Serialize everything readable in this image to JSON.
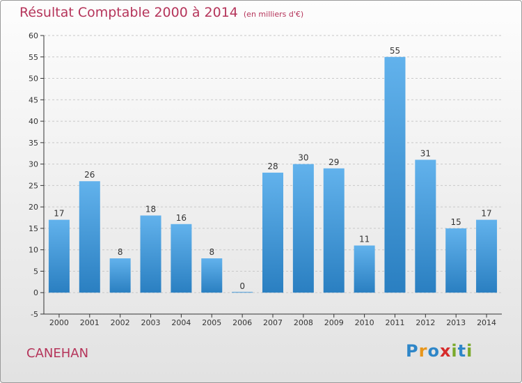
{
  "title": "Résultat Comptable 2000 à 2014",
  "subtitle": "(en milliers d'€)",
  "commune": "CANEHAN",
  "logo": {
    "letters": [
      "P",
      "r",
      "o",
      "x",
      "i",
      "t",
      "i"
    ],
    "colors": [
      "#2e86c8",
      "#e8961b",
      "#2e86c8",
      "#d62b2b",
      "#7aa92a",
      "#2e86c8",
      "#7aa92a"
    ]
  },
  "colors": {
    "title": "#b5345a",
    "bar_light": "#62b2ec",
    "bar_dark": "#2a7fc1",
    "grid": "#c8c8c8",
    "axis": "#333333"
  },
  "chart_data": {
    "type": "bar",
    "categories": [
      "2000",
      "2001",
      "2002",
      "2003",
      "2004",
      "2005",
      "2006",
      "2007",
      "2008",
      "2009",
      "2010",
      "2011",
      "2012",
      "2013",
      "2014"
    ],
    "values": [
      17,
      26,
      8,
      18,
      16,
      8,
      0,
      28,
      30,
      29,
      11,
      55,
      31,
      15,
      17
    ],
    "title": "Résultat Comptable 2000 à 2014",
    "xlabel": "",
    "ylabel": "",
    "ylim": [
      -5,
      60
    ],
    "yticks": [
      -5,
      0,
      5,
      10,
      15,
      20,
      25,
      30,
      35,
      40,
      45,
      50,
      55,
      60
    ],
    "grid": true,
    "data_labels": true
  }
}
